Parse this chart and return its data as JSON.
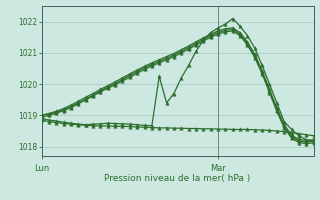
{
  "xlabel": "Pression niveau de la mer( hPa )",
  "bg_color": "#cce8e0",
  "line_color": "#2d6e2d",
  "ylim": [
    1017.7,
    1022.5
  ],
  "yticks": [
    1018,
    1019,
    1020,
    1021,
    1022
  ],
  "xlim": [
    0,
    37
  ],
  "lun_x": 0,
  "mar_x": 24,
  "markersize": 2.5,
  "linewidth": 0.9,
  "series": [
    [
      1018.9,
      1018.85,
      1018.82,
      1018.78,
      1018.75,
      1018.72,
      1018.7,
      1018.72,
      1018.73,
      1018.75,
      1018.74,
      1018.73,
      1018.72,
      1018.7,
      1018.68,
      1018.67,
      1020.25,
      1019.4,
      1019.7,
      1020.2,
      1020.6,
      1021.05,
      1021.4,
      1021.65,
      1021.8,
      1021.92,
      1022.1,
      1021.85,
      1021.55,
      1021.15,
      1020.6,
      1020.0,
      1019.4,
      1018.8,
      1018.55,
      1018.35,
      1018.22,
      1018.18
    ],
    [
      1018.85,
      1018.8,
      1018.77,
      1018.74,
      1018.72,
      1018.7,
      1018.68,
      1018.67,
      1018.66,
      1018.66,
      1018.65,
      1018.65,
      1018.64,
      1018.63,
      1018.62,
      1018.61,
      1018.6,
      1018.6,
      1018.59,
      1018.59,
      1018.58,
      1018.58,
      1018.57,
      1018.57,
      1018.56,
      1018.56,
      1018.55,
      1018.55,
      1018.55,
      1018.54,
      1018.53,
      1018.52,
      1018.5,
      1018.48,
      1018.45,
      1018.42,
      1018.38,
      1018.35
    ],
    [
      1019.0,
      1019.05,
      1019.1,
      1019.18,
      1019.28,
      1019.4,
      1019.52,
      1019.65,
      1019.78,
      1019.9,
      1020.02,
      1020.15,
      1020.28,
      1020.4,
      1020.52,
      1020.63,
      1020.73,
      1020.83,
      1020.93,
      1021.05,
      1021.17,
      1021.3,
      1021.43,
      1021.55,
      1021.65,
      1021.72,
      1021.75,
      1021.6,
      1021.3,
      1020.9,
      1020.38,
      1019.78,
      1019.18,
      1018.65,
      1018.32,
      1018.18,
      1018.15,
      1018.17
    ],
    [
      1019.0,
      1019.06,
      1019.13,
      1019.22,
      1019.33,
      1019.45,
      1019.58,
      1019.7,
      1019.83,
      1019.95,
      1020.07,
      1020.2,
      1020.33,
      1020.45,
      1020.57,
      1020.68,
      1020.78,
      1020.88,
      1020.98,
      1021.1,
      1021.22,
      1021.35,
      1021.48,
      1021.6,
      1021.7,
      1021.77,
      1021.8,
      1021.65,
      1021.35,
      1020.95,
      1020.43,
      1019.83,
      1019.23,
      1018.7,
      1018.37,
      1018.23,
      1018.2,
      1018.22
    ],
    [
      1018.95,
      1019.0,
      1019.07,
      1019.15,
      1019.25,
      1019.37,
      1019.5,
      1019.62,
      1019.75,
      1019.87,
      1019.98,
      1020.1,
      1020.22,
      1020.35,
      1020.47,
      1020.58,
      1020.68,
      1020.78,
      1020.88,
      1021.0,
      1021.12,
      1021.25,
      1021.38,
      1021.5,
      1021.6,
      1021.67,
      1021.7,
      1021.55,
      1021.25,
      1020.85,
      1020.33,
      1019.73,
      1019.13,
      1018.6,
      1018.27,
      1018.13,
      1018.1,
      1018.12
    ]
  ]
}
